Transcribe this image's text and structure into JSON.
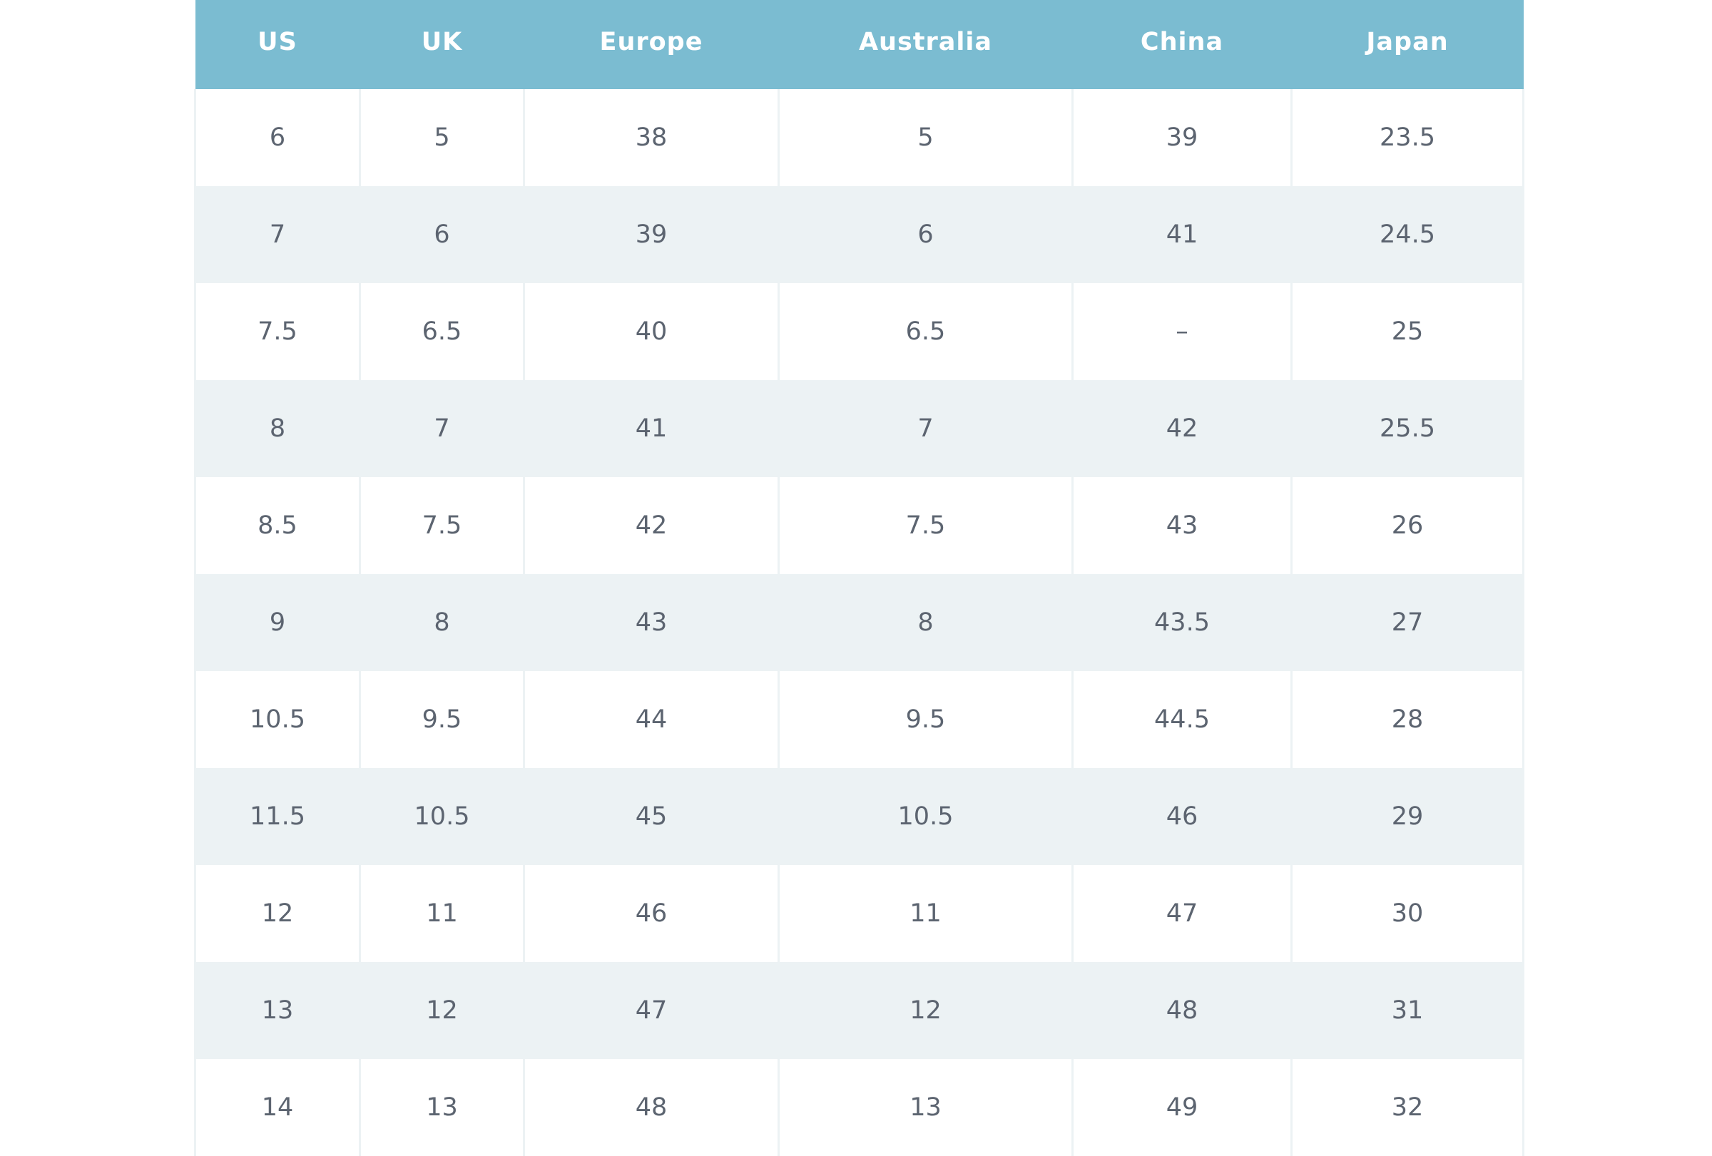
{
  "table": {
    "header_color": "#7bbcd1",
    "stripe_color": "#ecf2f4",
    "columns": [
      "US",
      "UK",
      "Europe",
      "Australia",
      "China",
      "Japan"
    ],
    "rows": [
      [
        "6",
        "5",
        "38",
        "5",
        "39",
        "23.5"
      ],
      [
        "7",
        "6",
        "39",
        "6",
        "41",
        "24.5"
      ],
      [
        "7.5",
        "6.5",
        "40",
        "6.5",
        "–",
        "25"
      ],
      [
        "8",
        "7",
        "41",
        "7",
        "42",
        "25.5"
      ],
      [
        "8.5",
        "7.5",
        "42",
        "7.5",
        "43",
        "26"
      ],
      [
        "9",
        "8",
        "43",
        "8",
        "43.5",
        "27"
      ],
      [
        "10.5",
        "9.5",
        "44",
        "9.5",
        "44.5",
        "28"
      ],
      [
        "11.5",
        "10.5",
        "45",
        "10.5",
        "46",
        "29"
      ],
      [
        "12",
        "11",
        "46",
        "11",
        "47",
        "30"
      ],
      [
        "13",
        "12",
        "47",
        "12",
        "48",
        "31"
      ],
      [
        "14",
        "13",
        "48",
        "13",
        "49",
        "32"
      ]
    ]
  }
}
